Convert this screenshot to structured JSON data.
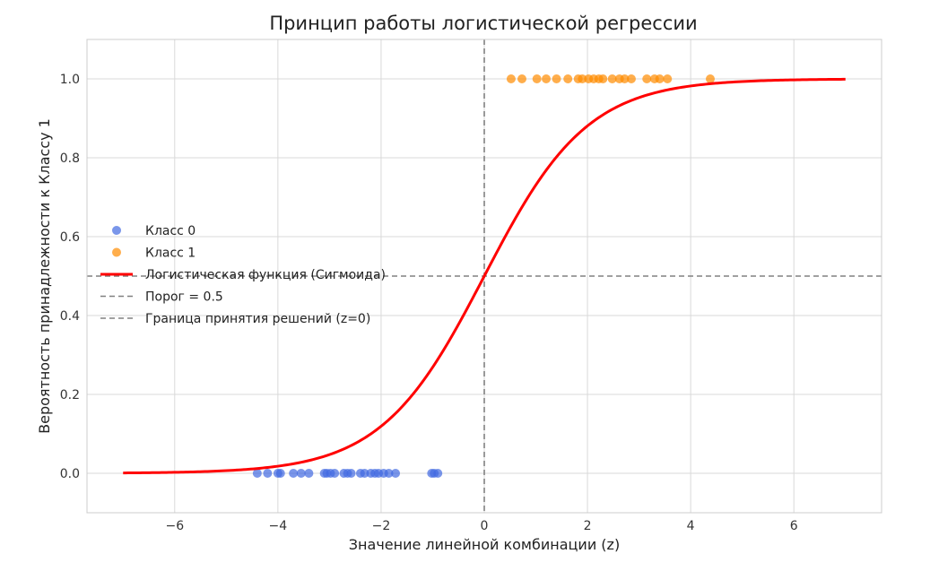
{
  "chart_data": {
    "type": "scatter",
    "title": "Принцип работы логистической регрессии",
    "xlabel": "Значение линейной комбинации (z)",
    "ylabel": "Вероятность принадлежности к Классу 1",
    "xlim": [
      -7.7,
      7.7
    ],
    "ylim": [
      -0.1,
      1.1
    ],
    "xticks": [
      -6,
      -4,
      -2,
      0,
      2,
      4,
      6
    ],
    "xtick_labels": [
      "−6",
      "−4",
      "−2",
      "0",
      "2",
      "4",
      "6"
    ],
    "yticks": [
      0.0,
      0.2,
      0.4,
      0.6,
      0.8,
      1.0
    ],
    "ytick_labels": [
      "0.0",
      "0.2",
      "0.4",
      "0.6",
      "0.8",
      "1.0"
    ],
    "grid": true,
    "legend_position": "center-left",
    "series": [
      {
        "name": "Класс 0",
        "kind": "scatter",
        "color": "#4169e1",
        "y": 0,
        "x": [
          -4.4,
          -4.2,
          -4.0,
          -3.95,
          -3.7,
          -3.55,
          -3.4,
          -3.1,
          -3.05,
          -2.98,
          -2.9,
          -2.72,
          -2.65,
          -2.58,
          -2.4,
          -2.32,
          -2.2,
          -2.12,
          -2.05,
          -1.95,
          -1.85,
          -1.72,
          -1.02,
          -0.97,
          -0.9
        ]
      },
      {
        "name": "Класс 1",
        "kind": "scatter",
        "color": "#ff8c00",
        "y": 1,
        "x": [
          0.52,
          0.73,
          1.02,
          1.2,
          1.4,
          1.62,
          1.82,
          1.9,
          2.02,
          2.12,
          2.22,
          2.3,
          2.48,
          2.62,
          2.72,
          2.85,
          3.15,
          3.3,
          3.4,
          3.55,
          4.38
        ]
      },
      {
        "name": "Логистическая функция (Сигмоида)",
        "kind": "line",
        "color": "#ff0000",
        "function": "1/(1+exp(-z))",
        "x_range": [
          -7,
          7
        ]
      },
      {
        "name": "Порог = 0.5",
        "kind": "hline",
        "color": "#808080",
        "y": 0.5
      },
      {
        "name": "Граница принятия решений (z=0)",
        "kind": "vline",
        "color": "#808080",
        "x": 0
      }
    ]
  }
}
